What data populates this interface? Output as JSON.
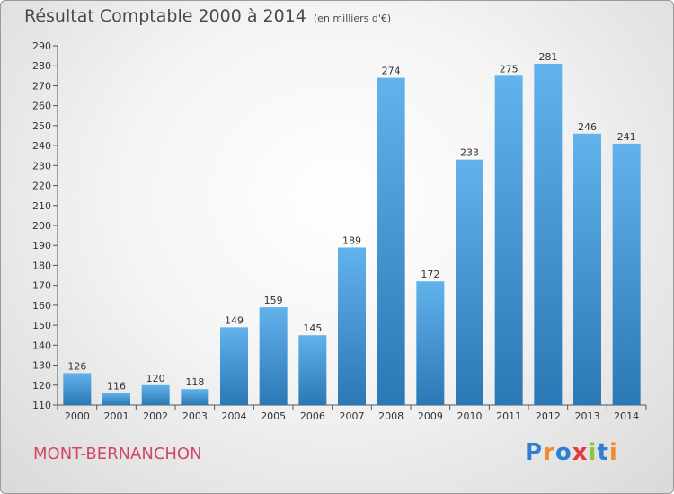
{
  "title": "Résultat Comptable 2000 à 2014",
  "unit_note": "(en milliers d'€)",
  "location": "MONT-BERNANCHON",
  "logo_text": "Proxiti",
  "colors": {
    "bar_light": "#62b2ec",
    "bar_dark": "#2a78b5",
    "title": "#4a4a4a",
    "location": "#d24766",
    "logo": [
      "#2f7fd0",
      "#f28b2c",
      "#2f7fd0",
      "#e23a3a",
      "#8cc63f",
      "#2f7fd0",
      "#f28b2c"
    ]
  },
  "chart_data": {
    "type": "bar",
    "title": "Résultat Comptable 2000 à 2014",
    "categories": [
      "2000",
      "2001",
      "2002",
      "2003",
      "2004",
      "2005",
      "2006",
      "2007",
      "2008",
      "2009",
      "2010",
      "2011",
      "2012",
      "2013",
      "2014"
    ],
    "values": [
      126,
      116,
      120,
      118,
      149,
      159,
      145,
      189,
      274,
      172,
      233,
      275,
      281,
      246,
      241
    ],
    "ylim": [
      110,
      290
    ],
    "ytick_step": 10,
    "grid": false,
    "legend": "none"
  }
}
